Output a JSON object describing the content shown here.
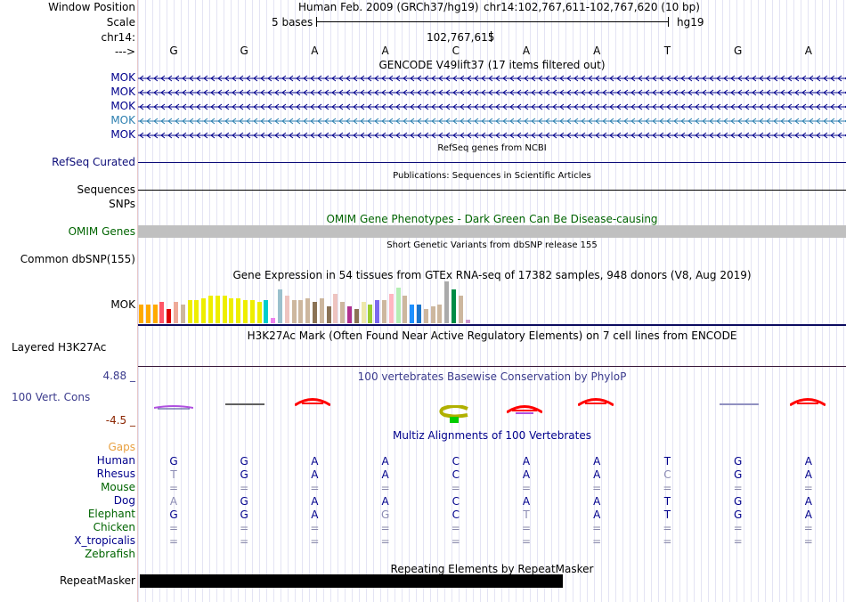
{
  "header": {
    "window_position_label": "Window Position",
    "scale_label": "Scale",
    "chrom_label": "chr14:",
    "strand_label": "--->",
    "assembly": "Human Feb. 2009 (GRCh37/hg19)",
    "position": "chr14:102,767,611-102,767,620 (10 bp)",
    "scale_text": "5 bases",
    "db": "hg19",
    "center_coord": "102,767,615",
    "bases": [
      "G",
      "G",
      "A",
      "A",
      "C",
      "A",
      "A",
      "T",
      "G",
      "A"
    ]
  },
  "gencode": {
    "title": "GENCODE V49lift37 (17 items filtered out)",
    "items": [
      {
        "label": "MOK",
        "color": "#00008c"
      },
      {
        "label": "MOK",
        "color": "#00008c"
      },
      {
        "label": "MOK",
        "color": "#00008c"
      },
      {
        "label": "MOK",
        "color": "#2c7fb0"
      },
      {
        "label": "MOK",
        "color": "#00008c"
      }
    ]
  },
  "refseq": {
    "title": "RefSeq genes from NCBI",
    "label": "RefSeq Curated",
    "color": "#0c0c78"
  },
  "publications": {
    "title": "Publications: Sequences in Scientific Articles",
    "label": "Sequences"
  },
  "snps": {
    "label": "SNPs"
  },
  "omim": {
    "title": "OMIM Gene Phenotypes - Dark Green Can Be Disease-causing",
    "label": "OMIM Genes",
    "color": "#006400",
    "bar_color": "#c0c0c0"
  },
  "dbsnp": {
    "title": "Short Genetic Variants from dbSNP release 155",
    "label": "Common dbSNP(155)"
  },
  "gtex": {
    "title": "Gene Expression in 54 tissues from GTEx RNA-seq of 17382 samples, 948 donors (V8, Aug 2019)",
    "label": "MOK",
    "bars": [
      {
        "h": 0.45,
        "c": "#ffaa00"
      },
      {
        "h": 0.45,
        "c": "#ffaa00"
      },
      {
        "h": 0.45,
        "c": "#ffaa00"
      },
      {
        "h": 0.5,
        "c": "#ff5566"
      },
      {
        "h": 0.35,
        "c": "#dd0000"
      },
      {
        "h": 0.5,
        "c": "#eeaa99"
      },
      {
        "h": 0.45,
        "c": "#cdb79e"
      },
      {
        "h": 0.55,
        "c": "#eeee00"
      },
      {
        "h": 0.55,
        "c": "#eeee00"
      },
      {
        "h": 0.6,
        "c": "#eeee00"
      },
      {
        "h": 0.65,
        "c": "#eeee00"
      },
      {
        "h": 0.65,
        "c": "#eeee00"
      },
      {
        "h": 0.65,
        "c": "#eeee00"
      },
      {
        "h": 0.6,
        "c": "#eeee00"
      },
      {
        "h": 0.6,
        "c": "#eeee00"
      },
      {
        "h": 0.55,
        "c": "#eeee00"
      },
      {
        "h": 0.55,
        "c": "#eeee00"
      },
      {
        "h": 0.5,
        "c": "#eeee00"
      },
      {
        "h": 0.55,
        "c": "#00cdcd"
      },
      {
        "h": 0.12,
        "c": "#ee82ee"
      },
      {
        "h": 0.8,
        "c": "#9ac0cd"
      },
      {
        "h": 0.65,
        "c": "#eec4c0"
      },
      {
        "h": 0.55,
        "c": "#cdb79e"
      },
      {
        "h": 0.55,
        "c": "#cdb79e"
      },
      {
        "h": 0.6,
        "c": "#cdb79e"
      },
      {
        "h": 0.5,
        "c": "#8b7355"
      },
      {
        "h": 0.6,
        "c": "#cdb79e"
      },
      {
        "h": 0.4,
        "c": "#8b7355"
      },
      {
        "h": 0.7,
        "c": "#eec4c0"
      },
      {
        "h": 0.5,
        "c": "#cdb79e"
      },
      {
        "h": 0.4,
        "c": "#b03090"
      },
      {
        "h": 0.35,
        "c": "#8b7355"
      },
      {
        "h": 0.5,
        "c": "#eee8aa"
      },
      {
        "h": 0.45,
        "c": "#9acd32"
      },
      {
        "h": 0.55,
        "c": "#7b68ee"
      },
      {
        "h": 0.55,
        "c": "#cdb79e"
      },
      {
        "h": 0.7,
        "c": "#ffb6c1"
      },
      {
        "h": 0.85,
        "c": "#b4eeb4"
      },
      {
        "h": 0.65,
        "c": "#cdb79e"
      },
      {
        "h": 0.45,
        "c": "#1e90ff"
      },
      {
        "h": 0.45,
        "c": "#1874cd"
      },
      {
        "h": 0.35,
        "c": "#cdb79e"
      },
      {
        "h": 0.4,
        "c": "#cdb79e"
      },
      {
        "h": 0.45,
        "c": "#cdb79e"
      },
      {
        "h": 1.0,
        "c": "#aaaaaa"
      },
      {
        "h": 0.8,
        "c": "#008b45"
      },
      {
        "h": 0.65,
        "c": "#cdb79e"
      },
      {
        "h": 0.08,
        "c": "#cd96cd"
      }
    ]
  },
  "h3k27ac": {
    "title": "H3K27Ac Mark (Often Found Near Active Regulatory Elements) on 7 cell lines from ENCODE",
    "label": "Layered H3K27Ac"
  },
  "phylop": {
    "title": "100 vertebrates Basewise Conservation by PhyloP",
    "label": "100 Vert. Cons",
    "ymax": "4.88 _",
    "ymin": "-4.5 _",
    "color": "#3a3a8c",
    "min_color": "#8b2500"
  },
  "multiz": {
    "title": "Multiz Alignments of 100 Vertebrates",
    "gaps_label": "Gaps",
    "gaps_color": "#e8a040",
    "species": [
      {
        "name": "Human",
        "color": "#00008c",
        "bases": [
          "G",
          "G",
          "A",
          "A",
          "C",
          "A",
          "A",
          "T",
          "G",
          "A"
        ]
      },
      {
        "name": "Rhesus",
        "color": "#00008c",
        "bases": [
          "T",
          "G",
          "A",
          "A",
          "C",
          "A",
          "A",
          "C",
          "G",
          "A"
        ]
      },
      {
        "name": "Mouse",
        "color": "#006400",
        "bases": [
          "=",
          "=",
          "=",
          "=",
          "=",
          "=",
          "=",
          "=",
          "=",
          "="
        ]
      },
      {
        "name": "Dog",
        "color": "#00008c",
        "bases": [
          "A",
          "G",
          "A",
          "A",
          "C",
          "A",
          "A",
          "T",
          "G",
          "A"
        ]
      },
      {
        "name": "Elephant",
        "color": "#006400",
        "bases": [
          "G",
          "G",
          "A",
          "G",
          "C",
          "T",
          "A",
          "T",
          "G",
          "A"
        ]
      },
      {
        "name": "Chicken",
        "color": "#006400",
        "bases": [
          "=",
          "=",
          "=",
          "=",
          "=",
          "=",
          "=",
          "=",
          "=",
          "="
        ]
      },
      {
        "name": "X_tropicalis",
        "color": "#00008c",
        "bases": [
          "=",
          "=",
          "=",
          "=",
          "=",
          "=",
          "=",
          "=",
          "=",
          "="
        ]
      },
      {
        "name": "Zebrafish",
        "color": "#006400",
        "bases": [
          "",
          "",
          "",
          "",
          "",
          "",
          "",
          "",
          "",
          ""
        ]
      }
    ],
    "faded": {
      "Rhesus": [
        0,
        7
      ],
      "Dog": [
        0
      ],
      "Elephant": [
        3,
        5
      ]
    }
  },
  "repeatmasker": {
    "title": "Repeating Elements by RepeatMasker",
    "label": "RepeatMasker",
    "fill_fraction": 0.6
  }
}
